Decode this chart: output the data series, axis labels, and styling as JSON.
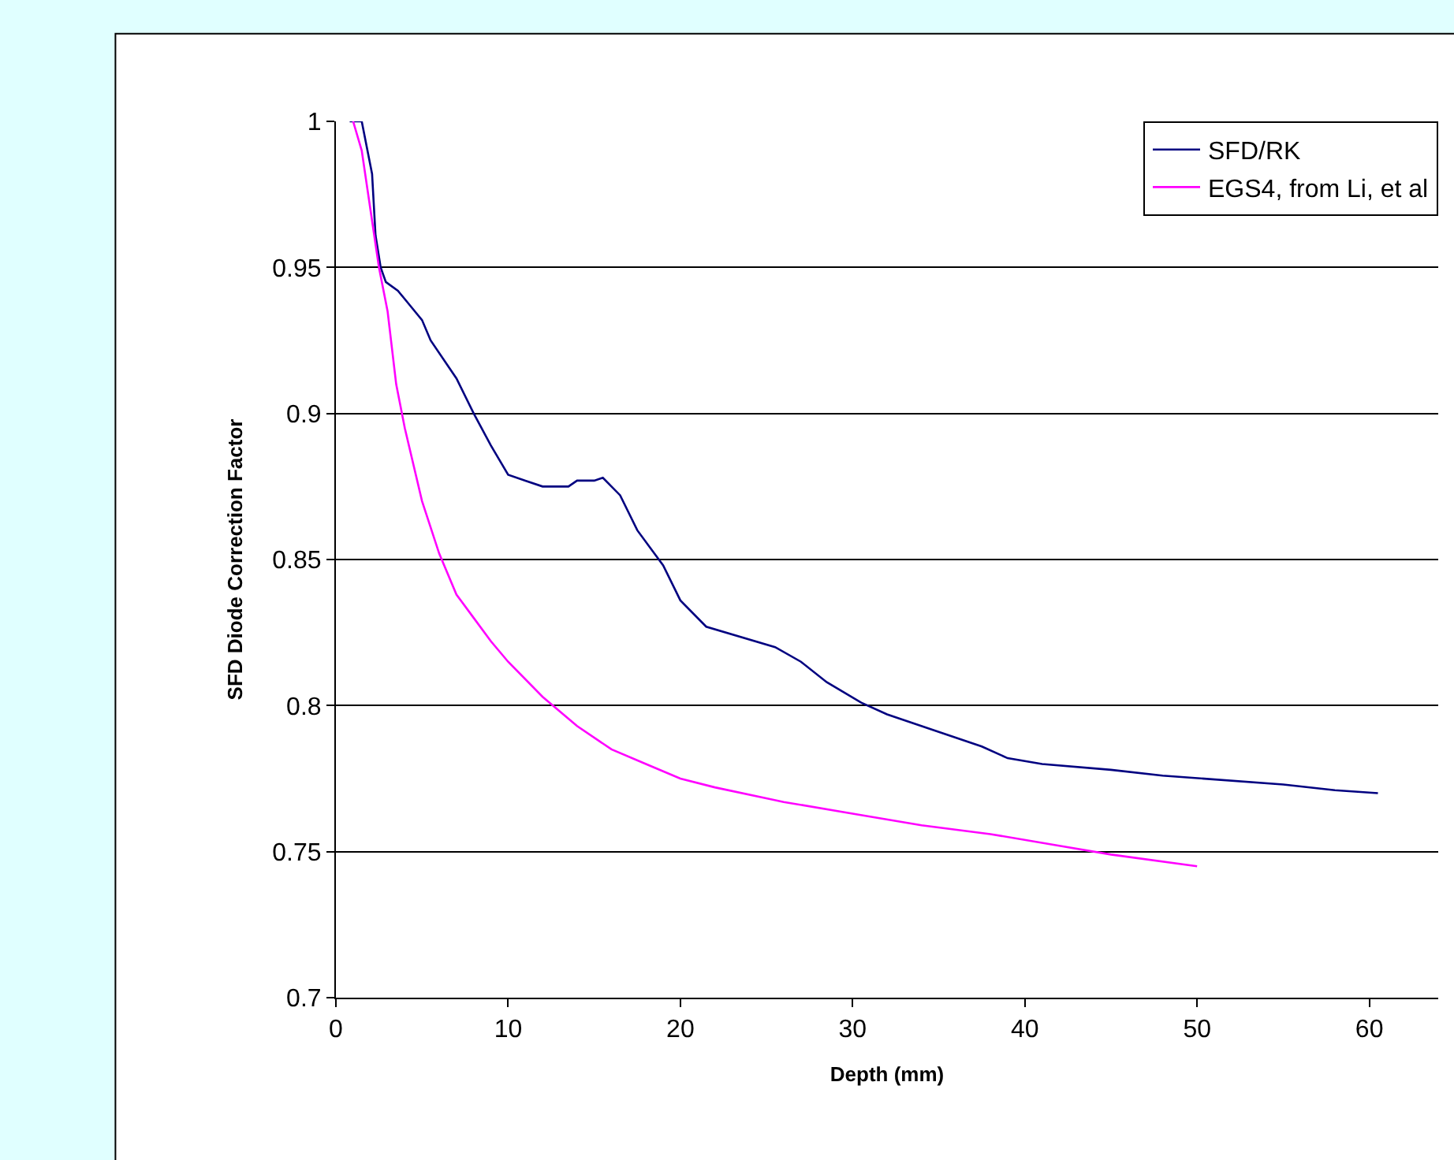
{
  "chart_data": {
    "type": "line",
    "xlabel": "Depth (mm)",
    "ylabel": "SFD Diode Correction Factor",
    "xlim": [
      0,
      64
    ],
    "xticks": [
      0,
      10,
      20,
      30,
      40,
      50,
      60
    ],
    "ylim": [
      0.7,
      1
    ],
    "yticks": [
      0.7,
      0.75,
      0.8,
      0.85,
      0.9,
      0.95,
      1
    ],
    "grid": "y",
    "legend": "top right",
    "marker": "none",
    "line_style": "solid",
    "series": [
      {
        "name": "SFD/RK",
        "color": "#000080",
        "x": [
          0.8,
          1.5,
          2.1,
          2.3,
          2.6,
          2.9,
          3.6,
          4.3,
          5.0,
          5.5,
          7,
          8,
          9,
          10,
          11,
          12,
          13.5,
          14,
          15,
          15.5,
          16.5,
          17.5,
          19,
          20,
          21.5,
          25.5,
          27,
          28.5,
          30.5,
          32,
          35,
          37.5,
          39,
          41,
          45,
          48,
          55,
          58,
          60.5
        ],
        "values": [
          1.0,
          1.0,
          0.982,
          0.961,
          0.95,
          0.945,
          0.942,
          0.937,
          0.932,
          0.925,
          0.912,
          0.9,
          0.889,
          0.879,
          0.877,
          0.875,
          0.875,
          0.877,
          0.877,
          0.878,
          0.872,
          0.86,
          0.848,
          0.836,
          0.827,
          0.82,
          0.815,
          0.808,
          0.801,
          0.797,
          0.791,
          0.786,
          0.782,
          0.78,
          0.778,
          0.776,
          0.773,
          0.771,
          0.77
        ]
      },
      {
        "name": "EGS4, from Li, et al",
        "color": "#ff00ff",
        "x": [
          1,
          1.5,
          2,
          2.5,
          3,
          3.5,
          4,
          5,
          6,
          7,
          8,
          9,
          10,
          12,
          14,
          16,
          18,
          20,
          22,
          26,
          30,
          34,
          38,
          42,
          45,
          50
        ],
        "values": [
          1.0,
          0.99,
          0.97,
          0.95,
          0.935,
          0.91,
          0.895,
          0.87,
          0.852,
          0.838,
          0.83,
          0.822,
          0.815,
          0.803,
          0.793,
          0.785,
          0.78,
          0.775,
          0.772,
          0.767,
          0.763,
          0.759,
          0.756,
          0.752,
          0.749,
          0.745
        ]
      }
    ]
  }
}
